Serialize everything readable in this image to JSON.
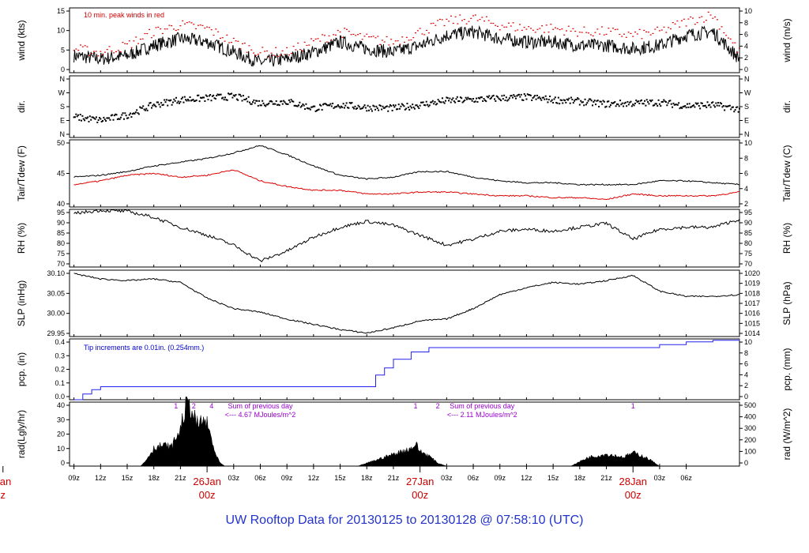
{
  "footer_title": "UW Rooftop Data for 20130125  to  20130128 @ 07:58:10  (UTC)",
  "colors": {
    "frame": "#000000",
    "red": "#dd0000",
    "blue": "#2222ee",
    "purple": "#9900cc",
    "day": "#cc0000"
  },
  "chart_data": [
    {
      "type": "line",
      "name": "wind",
      "ylabel_left": "wind (kts)",
      "ylabel_right": "wind (m/s)",
      "ylim": [
        0,
        19
      ],
      "yticks_left": [
        "0",
        "5",
        "10",
        "15"
      ],
      "yticks_right": [
        "0",
        "2",
        "4",
        "6",
        "8",
        "10"
      ],
      "annotation": "10 min. peak winds in red",
      "series": [
        {
          "name": "wind",
          "color": "#000000",
          "x": [
            0,
            3,
            6,
            9,
            12,
            15,
            18,
            21,
            24,
            27,
            30,
            33,
            36,
            39,
            42,
            45,
            48,
            51,
            54,
            57,
            60,
            63,
            66,
            69,
            72,
            75
          ],
          "values": [
            5,
            4,
            5,
            8,
            10,
            9,
            6,
            3,
            4,
            6,
            9,
            7,
            6,
            8,
            11,
            12,
            10,
            9,
            9,
            8,
            8,
            7,
            8,
            11,
            12,
            4
          ]
        },
        {
          "name": "peak",
          "color": "#dd0000",
          "x": [
            0,
            3,
            6,
            9,
            12,
            15,
            18,
            21,
            24,
            27,
            30,
            33,
            36,
            39,
            42,
            45,
            48,
            51,
            54,
            57,
            60,
            63,
            66,
            69,
            72,
            75
          ],
          "values": [
            7,
            6,
            8,
            12,
            14,
            13,
            9,
            6,
            6,
            9,
            12,
            10,
            9,
            12,
            15,
            16,
            14,
            13,
            13,
            12,
            12,
            11,
            12,
            15,
            17,
            6
          ]
        }
      ]
    },
    {
      "type": "scatter",
      "name": "direction",
      "ylabel_left": "dir.",
      "ylabel_right": "dir.",
      "ylim": [
        0,
        360
      ],
      "yticks_left": [
        "N",
        "E",
        "S",
        "W",
        "N"
      ],
      "yticks_right": [
        "N",
        "E",
        "S",
        "W",
        "N"
      ],
      "series": [
        {
          "name": "dir",
          "color": "#000000",
          "x": [
            0,
            3,
            6,
            9,
            12,
            15,
            18,
            21,
            24,
            27,
            30,
            33,
            36,
            39,
            42,
            45,
            48,
            51,
            54,
            57,
            60,
            63,
            66,
            69,
            72,
            75
          ],
          "values": [
            120,
            100,
            130,
            190,
            220,
            230,
            240,
            200,
            210,
            170,
            190,
            175,
            170,
            190,
            215,
            220,
            230,
            235,
            220,
            210,
            195,
            200,
            205,
            185,
            190,
            165
          ]
        }
      ]
    },
    {
      "type": "line",
      "name": "temperature",
      "ylabel_left": "Tair/Tdew (F)",
      "ylabel_right": "Tair/Tdew (C)",
      "ylim": [
        35,
        53
      ],
      "yticks_left": [
        "40",
        "45",
        "50"
      ],
      "yticks_right": [
        "2",
        "4",
        "6",
        "8",
        "10"
      ],
      "series": [
        {
          "name": "Tair",
          "color": "#000000",
          "x": [
            0,
            3,
            6,
            9,
            12,
            15,
            18,
            21,
            24,
            27,
            30,
            33,
            36,
            39,
            42,
            45,
            48,
            51,
            54,
            57,
            60,
            63,
            66,
            69,
            72,
            75
          ],
          "values": [
            43,
            43.5,
            44.5,
            46,
            47,
            48,
            49.5,
            51.5,
            49,
            46,
            43.5,
            42.5,
            43,
            44.5,
            44.5,
            43,
            42,
            41.5,
            41.5,
            41,
            41,
            41,
            42,
            42,
            41.5,
            41
          ]
        },
        {
          "name": "Tdew",
          "color": "#dd0000",
          "x": [
            0,
            3,
            6,
            9,
            12,
            15,
            18,
            21,
            24,
            27,
            30,
            33,
            36,
            39,
            42,
            45,
            48,
            51,
            54,
            57,
            60,
            63,
            66,
            69,
            72,
            75
          ],
          "values": [
            41,
            42,
            43.5,
            44,
            43,
            43.5,
            45,
            42,
            40.5,
            39.5,
            39.5,
            38.5,
            38.5,
            39,
            39,
            38.5,
            38,
            38,
            37.5,
            37.5,
            37,
            38.5,
            38,
            38,
            38,
            39
          ]
        }
      ]
    },
    {
      "type": "line",
      "name": "humidity",
      "ylabel_left": "RH (%)",
      "ylabel_right": "RH (%)",
      "ylim": [
        68,
        97
      ],
      "yticks_left": [
        "70",
        "75",
        "80",
        "85",
        "90",
        "95"
      ],
      "yticks_right": [
        "70",
        "75",
        "80",
        "85",
        "90",
        "95"
      ],
      "series": [
        {
          "name": "RH",
          "color": "#000000",
          "x": [
            0,
            3,
            6,
            9,
            12,
            15,
            18,
            21,
            24,
            27,
            30,
            33,
            36,
            39,
            42,
            45,
            48,
            51,
            54,
            57,
            60,
            63,
            66,
            69,
            72,
            75
          ],
          "values": [
            95,
            96.5,
            96,
            93,
            88,
            84,
            79,
            71,
            76,
            83,
            88,
            91,
            89,
            84,
            79,
            82,
            86,
            87,
            86,
            88,
            90,
            82,
            87,
            88,
            88,
            92
          ]
        }
      ]
    },
    {
      "type": "line",
      "name": "pressure",
      "ylabel_left": "SLP (inHg)",
      "ylabel_right": "SLP (hPa)",
      "ylim": [
        29.94,
        30.13
      ],
      "yticks_left": [
        "29.95",
        "30.00",
        "30.05",
        "30.10"
      ],
      "yticks_right": [
        "1014",
        "1015",
        "1016",
        "1017",
        "1018",
        "1019",
        "1020"
      ],
      "series": [
        {
          "name": "SLP",
          "color": "#000000",
          "x": [
            0,
            3,
            6,
            9,
            12,
            15,
            18,
            21,
            24,
            27,
            30,
            33,
            36,
            39,
            42,
            45,
            48,
            51,
            54,
            57,
            60,
            63,
            66,
            69,
            72,
            75
          ],
          "values": [
            30.12,
            30.105,
            30.1,
            30.105,
            30.095,
            30.05,
            30.02,
            30.01,
            29.99,
            29.975,
            29.96,
            29.95,
            29.965,
            29.985,
            29.99,
            30.02,
            30.06,
            30.08,
            30.095,
            30.09,
            30.1,
            30.115,
            30.07,
            30.055,
            30.055,
            30.06
          ]
        }
      ]
    },
    {
      "type": "line",
      "name": "precipitation",
      "ylabel_left": "pcp. (in)",
      "ylabel_right": "pcp. (mm)",
      "ylim": [
        0,
        0.42
      ],
      "yticks_left": [
        "0.0",
        "0.1",
        "0.2",
        "0.3",
        "0.4"
      ],
      "yticks_right": [
        "0",
        "2",
        "4",
        "6",
        "8",
        "10"
      ],
      "annotation": "Tip increments are 0.01in. (0.254mm.)",
      "series": [
        {
          "name": "pcp",
          "color": "#2222ee",
          "x": [
            0,
            1,
            2,
            3,
            6,
            12,
            18,
            24,
            30,
            33,
            34,
            35,
            36,
            38,
            40,
            42,
            45,
            50,
            55,
            60,
            63,
            66,
            69,
            72,
            75
          ],
          "values": [
            0,
            0.04,
            0.07,
            0.09,
            0.09,
            0.09,
            0.09,
            0.09,
            0.09,
            0.09,
            0.17,
            0.22,
            0.28,
            0.33,
            0.36,
            0.36,
            0.36,
            0.36,
            0.36,
            0.36,
            0.36,
            0.38,
            0.4,
            0.41,
            0.42
          ]
        }
      ]
    },
    {
      "type": "area",
      "name": "radiation",
      "ylabel_left": "rad(Lgly/hr)",
      "ylabel_right": "rad (W/m^2)",
      "ylim": [
        0,
        43
      ],
      "yticks_left": [
        "0",
        "10",
        "20",
        "30",
        "40"
      ],
      "yticks_right": [
        "0",
        "100",
        "200",
        "300",
        "400",
        "500"
      ],
      "sum_labels": [
        {
          "title": "Sum of previous day",
          "value": "<--- 4.67 MJoules/m^2",
          "x": 21
        },
        {
          "title": "Sum of previous day",
          "value": "<--- 2.11 MJoules/m^2",
          "x": 46
        }
      ],
      "markers": [
        {
          "label": "1",
          "x": 11.5
        },
        {
          "label": "2",
          "x": 13.5
        },
        {
          "label": "4",
          "x": 15.5
        },
        {
          "label": "1",
          "x": 38.5
        },
        {
          "label": "2",
          "x": 41
        },
        {
          "label": "1",
          "x": 63
        }
      ],
      "series": [
        {
          "name": "rad",
          "color": "#000000",
          "x": [
            7.5,
            8,
            9,
            10,
            11,
            12,
            12.5,
            13,
            13.5,
            14,
            14.5,
            15,
            15.5,
            16,
            16.5,
            17,
            32,
            33,
            34,
            35,
            36,
            37,
            38,
            38.5,
            39,
            40,
            41,
            42,
            56,
            57,
            58,
            59,
            60,
            61,
            62,
            63,
            64,
            65,
            66
          ],
          "values": [
            0,
            3,
            12,
            14,
            13,
            25,
            38,
            42,
            33,
            27,
            31,
            28,
            18,
            7,
            2,
            0,
            0,
            2,
            4,
            6,
            8,
            10,
            12,
            15,
            10,
            7,
            2,
            0,
            0,
            3,
            6,
            7,
            8,
            7,
            6,
            9,
            7,
            4,
            0
          ]
        }
      ]
    }
  ],
  "x_axis": {
    "xlim": [
      -0.5,
      75
    ],
    "ticks": [
      {
        "label": "09z",
        "x": 0
      },
      {
        "label": "12z",
        "x": 3
      },
      {
        "label": "15z",
        "x": 6
      },
      {
        "label": "18z",
        "x": 9
      },
      {
        "label": "21z",
        "x": 12
      },
      {
        "label": "03z",
        "x": 18
      },
      {
        "label": "06z",
        "x": 21
      },
      {
        "label": "09z",
        "x": 24
      },
      {
        "label": "12z",
        "x": 27
      },
      {
        "label": "15z",
        "x": 30
      },
      {
        "label": "18z",
        "x": 33
      },
      {
        "label": "21z",
        "x": 36
      },
      {
        "label": "03z",
        "x": 42
      },
      {
        "label": "06z",
        "x": 45
      },
      {
        "label": "09z",
        "x": 48
      },
      {
        "label": "12z",
        "x": 51
      },
      {
        "label": "15z",
        "x": 54
      },
      {
        "label": "18z",
        "x": 57
      },
      {
        "label": "21z",
        "x": 60
      },
      {
        "label": "03z",
        "x": 66
      },
      {
        "label": "06z",
        "x": 69
      }
    ],
    "day_labels": [
      {
        "day": "Jan",
        "hour": "z",
        "x": -8
      },
      {
        "day": "26Jan",
        "hour": "00z",
        "x": 15
      },
      {
        "day": "27Jan",
        "hour": "00z",
        "x": 39
      },
      {
        "day": "28Jan",
        "hour": "00z",
        "x": 63
      }
    ]
  }
}
